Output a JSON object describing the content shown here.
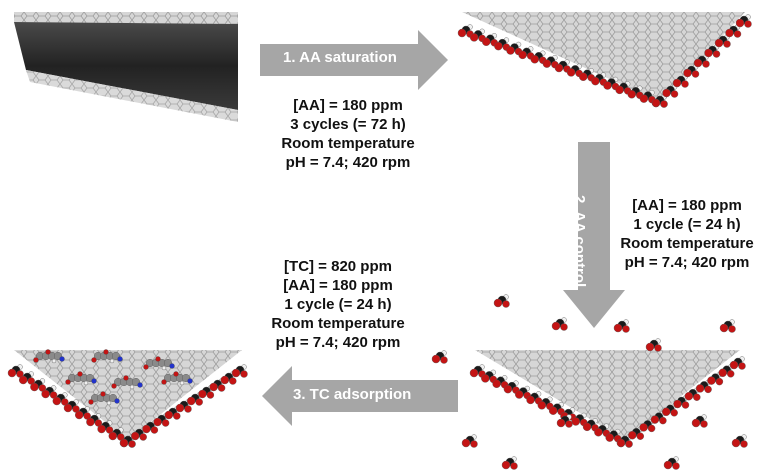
{
  "steps": [
    {
      "label": "1. AA saturation",
      "conditions": [
        "[AA] = 180 ppm",
        "3 cycles (= 72 h)",
        "Room temperature",
        "pH = 7.4; 420 rpm"
      ]
    },
    {
      "label": "2. AA control",
      "conditions": [
        "[AA] = 180 ppm",
        "1 cycle (= 24 h)",
        "Room temperature",
        "pH = 7.4; 420 rpm"
      ]
    },
    {
      "label": "3. TC adsorption",
      "conditions": [
        "[TC] = 820 ppm",
        "[AA] = 180 ppm",
        "1 cycle (= 24 h)",
        "Room temperature",
        "pH = 7.4; 420 rpm"
      ]
    }
  ],
  "colors": {
    "arrow": "#a6a6a6",
    "sheet": "#d4d4d4",
    "bulk": "#2b2b2b",
    "oxygen": "#c41414",
    "carbon": "#1a1a1a",
    "hydrogen": "#f0f0f0",
    "nitrogen": "#2233cc"
  }
}
